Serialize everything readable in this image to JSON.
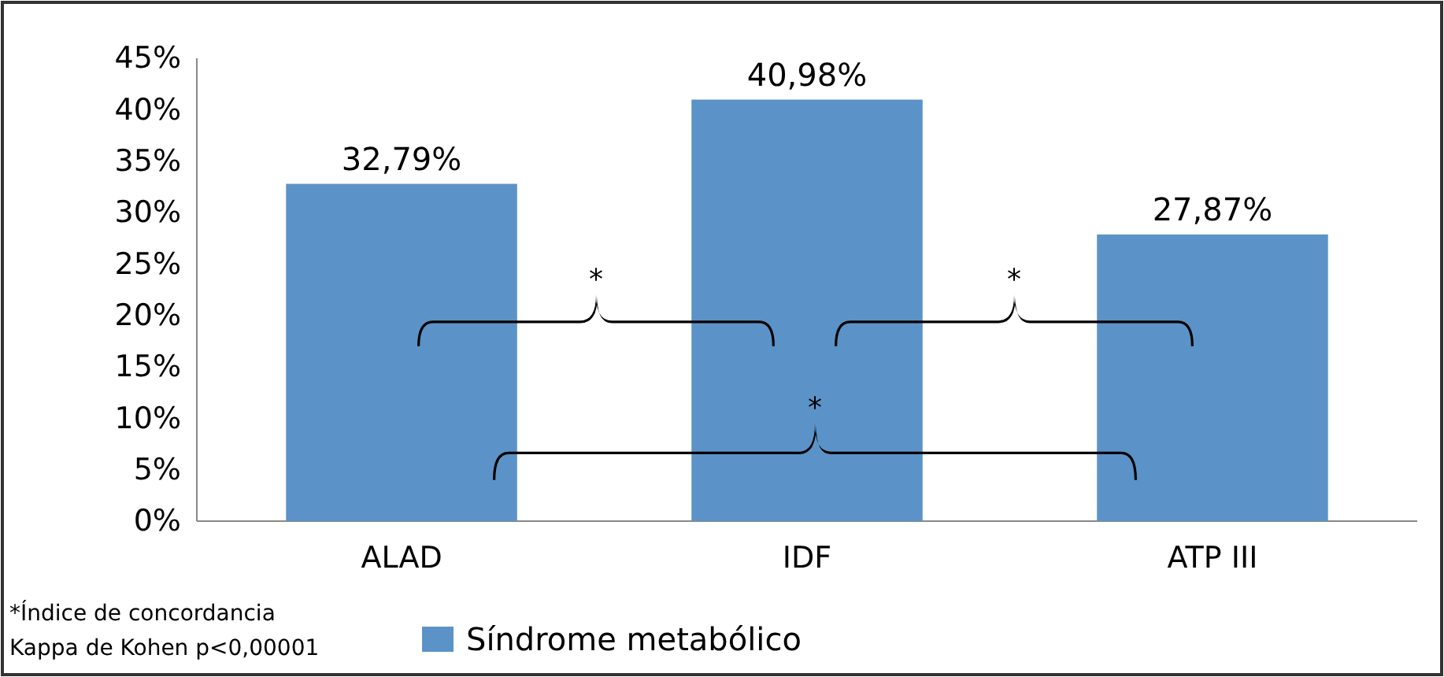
{
  "chart_data": {
    "type": "bar",
    "categories": [
      "ALAD",
      "IDF",
      "ATP III"
    ],
    "series": [
      {
        "name": "Síndrome metabólico",
        "color": "#5b93c8",
        "values": [
          32.79,
          40.98,
          27.87
        ],
        "value_labels": [
          "32,79%",
          "40,98%",
          "27,87%"
        ]
      }
    ],
    "ylim": [
      0,
      45
    ],
    "yticks": [
      {
        "value": 0,
        "label": "0%"
      },
      {
        "value": 5,
        "label": "5%"
      },
      {
        "value": 10,
        "label": "10%"
      },
      {
        "value": 15,
        "label": "15%"
      },
      {
        "value": 20,
        "label": "20%"
      },
      {
        "value": 25,
        "label": "25%"
      },
      {
        "value": 30,
        "label": "30%"
      },
      {
        "value": 35,
        "label": "35%"
      },
      {
        "value": 40,
        "label": "40%"
      },
      {
        "value": 45,
        "label": "45%"
      }
    ],
    "grid": false,
    "legend": "bottom",
    "annotations": [
      "*",
      "*",
      "*",
      "*Índice de concordancia",
      "Kappa de Kohen p<0,00001"
    ]
  }
}
